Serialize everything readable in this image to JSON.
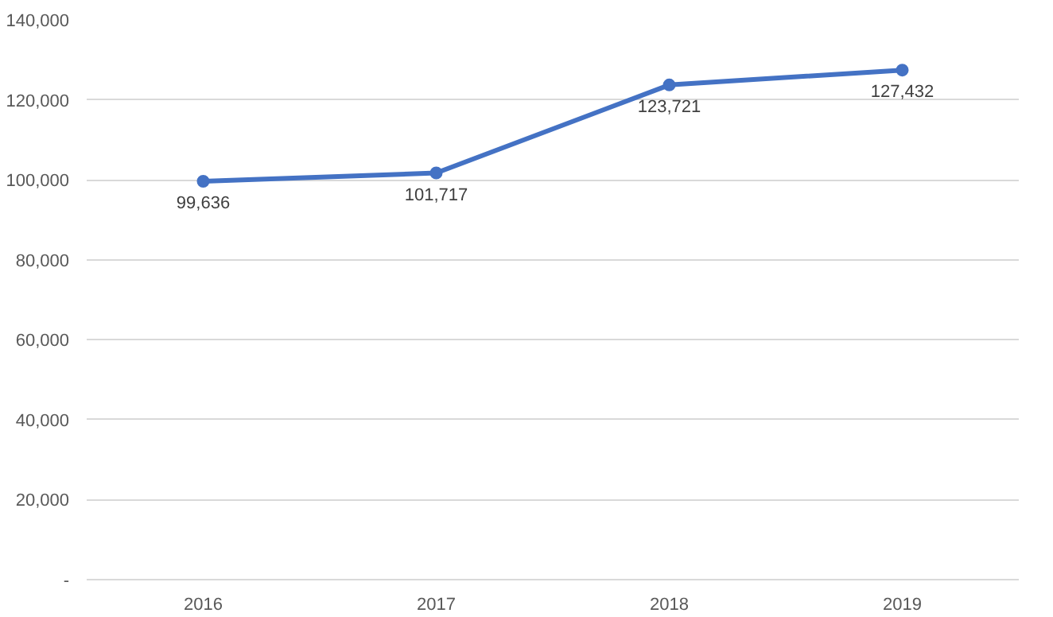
{
  "chart_data": {
    "type": "line",
    "categories": [
      "2016",
      "2017",
      "2018",
      "2019"
    ],
    "series": [
      {
        "color": "#4472c4",
        "values": [
          99636,
          101717,
          123721,
          127432
        ],
        "value_labels": [
          "99,636",
          "101,717",
          "123,721",
          "127,432"
        ]
      }
    ],
    "ylim": [
      0,
      140000
    ],
    "yticks": [
      {
        "value": 0,
        "label": "-"
      },
      {
        "value": 20000,
        "label": "20,000"
      },
      {
        "value": 40000,
        "label": "40,000"
      },
      {
        "value": 60000,
        "label": "60,000"
      },
      {
        "value": 80000,
        "label": "80,000"
      },
      {
        "value": 100000,
        "label": "100,000"
      },
      {
        "value": 120000,
        "label": "120,000"
      },
      {
        "value": 140000,
        "label": "140,000"
      }
    ],
    "grid": "y",
    "marker": "circle",
    "line_style": "solid"
  }
}
